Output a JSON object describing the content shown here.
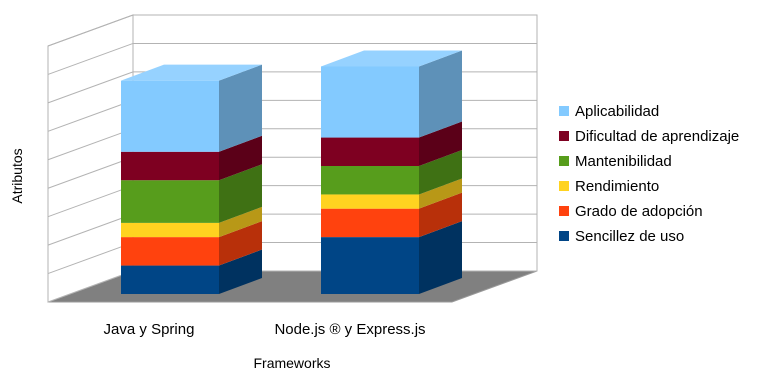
{
  "chart_data": {
    "type": "bar",
    "stacked": true,
    "three_d": true,
    "categories": [
      "Java y Spring",
      "Node.js ® y Express.js"
    ],
    "series": [
      {
        "name": "Sencillez de uso",
        "color": "#004586",
        "values": [
          1,
          2
        ]
      },
      {
        "name": "Grado de adopción",
        "color": "#ff420e",
        "values": [
          1,
          1
        ]
      },
      {
        "name": "Rendimiento",
        "color": "#ffd320",
        "values": [
          0.5,
          0.5
        ]
      },
      {
        "name": "Mantenibilidad",
        "color": "#579d1c",
        "values": [
          1.5,
          1
        ]
      },
      {
        "name": "Dificultad de aprendizaje",
        "color": "#7e0021",
        "values": [
          1,
          1
        ]
      },
      {
        "name": "Aplicabilidad",
        "color": "#83caff",
        "values": [
          2.5,
          2.5
        ]
      }
    ],
    "xlabel": "Frameworks",
    "ylabel": "Atributos",
    "ylim": [
      0,
      9
    ],
    "grid": true,
    "legend_position": "right"
  }
}
